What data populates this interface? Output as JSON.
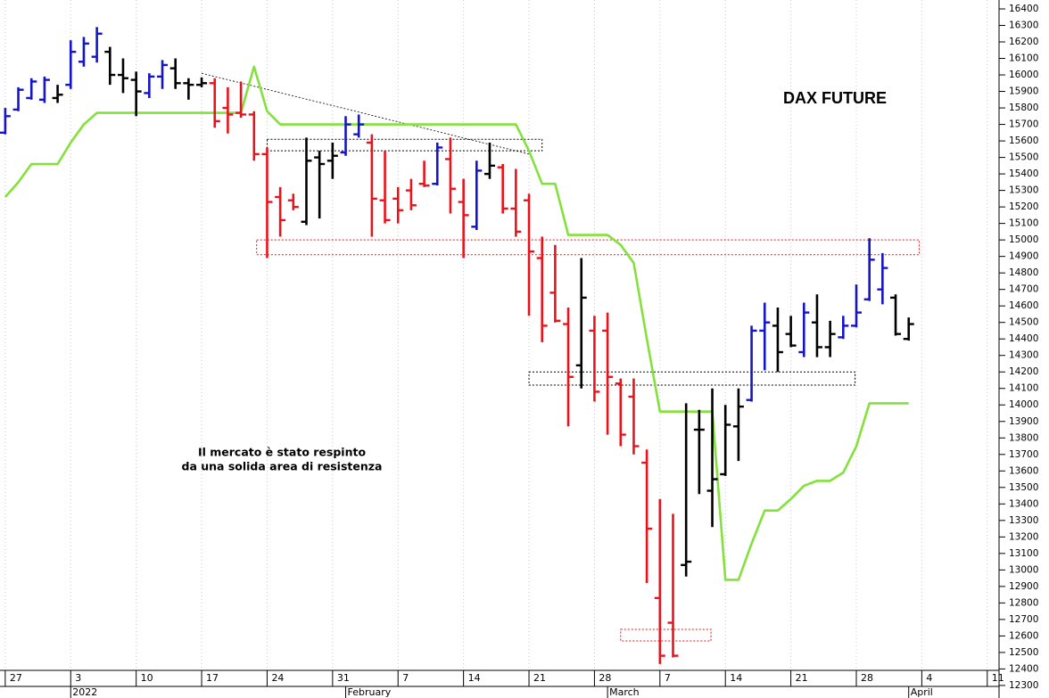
{
  "chart_data": {
    "type": "ohlc",
    "title": "DAX FUTURE",
    "annotation": [
      "Il mercato è stato respinto",
      "da una solida area di resistenza"
    ],
    "x": [
      0,
      1,
      2,
      3,
      4,
      5,
      6,
      7,
      8,
      9,
      10,
      11,
      12,
      13,
      14,
      15,
      16,
      17,
      18,
      19,
      20,
      21,
      22,
      23,
      24,
      25,
      26,
      27,
      28,
      29,
      30,
      31,
      32,
      33,
      34,
      35,
      36,
      37,
      38,
      39,
      40,
      41,
      42,
      43,
      44,
      45,
      46,
      47,
      48,
      49,
      50,
      51,
      52,
      53,
      54,
      55,
      56,
      57,
      58,
      59,
      60,
      61,
      62,
      63,
      64,
      65,
      66,
      67,
      68,
      69
    ],
    "open": [
      15650,
      15790,
      15860,
      15850,
      15860,
      15940,
      16080,
      16110,
      16140,
      16000,
      15970,
      15890,
      15990,
      16040,
      15950,
      15940,
      15950,
      15800,
      15770,
      15760,
      15520,
      15260,
      15240,
      15110,
      15500,
      15480,
      15530,
      15640,
      15590,
      15240,
      15250,
      15300,
      15340,
      15340,
      15490,
      15230,
      15080,
      15400,
      15440,
      15190,
      15240,
      14890,
      14680,
      14490,
      14240,
      14450,
      14450,
      14130,
      14050,
      13650,
      12830,
      12680,
      13030,
      13850,
      13480,
      13580,
      13870,
      14030,
      14450,
      14480,
      14430,
      14320,
      14500,
      14350,
      14410,
      14480,
      14640,
      14700,
      14650,
      14400
    ],
    "high": [
      15800,
      15925,
      15980,
      15990,
      15940,
      16210,
      16230,
      16290,
      16170,
      16100,
      16020,
      16010,
      16090,
      16100,
      15980,
      15985,
      15980,
      15925,
      15960,
      15780,
      15560,
      15320,
      15280,
      15620,
      15540,
      15590,
      15750,
      15760,
      15640,
      15540,
      15320,
      15370,
      15480,
      15590,
      15620,
      15370,
      15480,
      15590,
      15460,
      15430,
      15280,
      15020,
      14970,
      14590,
      14890,
      14540,
      14560,
      14160,
      14160,
      13730,
      13430,
      13340,
      14010,
      13970,
      14100,
      14000,
      14100,
      14480,
      14620,
      14590,
      14540,
      14620,
      14670,
      14510,
      14540,
      14730,
      15010,
      14920,
      14670,
      14530
    ],
    "low": [
      15640,
      15780,
      15850,
      15830,
      15830,
      15915,
      16050,
      16075,
      15940,
      15890,
      15750,
      15860,
      15915,
      15915,
      15850,
      15925,
      15680,
      15645,
      15740,
      15480,
      14890,
      15020,
      15180,
      15090,
      15130,
      15370,
      15510,
      15620,
      15020,
      15100,
      15100,
      15180,
      15320,
      15330,
      15160,
      14890,
      15060,
      15370,
      15160,
      15020,
      14540,
      14380,
      14500,
      13870,
      14100,
      14020,
      13820,
      13750,
      13700,
      12920,
      12430,
      12470,
      12960,
      13460,
      13260,
      13570,
      13660,
      14020,
      14210,
      14200,
      14350,
      14290,
      14290,
      14290,
      14400,
      14470,
      14630,
      14610,
      14420,
      14390
    ],
    "close": [
      15750,
      15910,
      15960,
      15970,
      15880,
      16140,
      16190,
      16250,
      16000,
      15980,
      15900,
      15990,
      16060,
      15950,
      15940,
      15950,
      15720,
      15760,
      15760,
      15520,
      15230,
      15120,
      15200,
      15480,
      15460,
      15510,
      15700,
      15700,
      15250,
      15120,
      15180,
      15210,
      15330,
      15560,
      15310,
      15150,
      15420,
      15450,
      15190,
      15050,
      14930,
      14480,
      14510,
      14170,
      14650,
      14080,
      14170,
      13820,
      13750,
      13250,
      12480,
      12480,
      13050,
      13850,
      13550,
      13880,
      13990,
      14450,
      14500,
      14320,
      14360,
      14560,
      14350,
      14430,
      14480,
      14560,
      14880,
      14830,
      14430,
      14490
    ],
    "bar_colors": [
      "#1414c8",
      "#1414c8",
      "#1414c8",
      "#1414c8",
      "#000000",
      "#1414c8",
      "#1414c8",
      "#1414c8",
      "#000000",
      "#000000",
      "#000000",
      "#1414c8",
      "#1414c8",
      "#000000",
      "#000000",
      "#000000",
      "#e8141c",
      "#e8141c",
      "#e8141c",
      "#e8141c",
      "#e8141c",
      "#e8141c",
      "#e8141c",
      "#000000",
      "#000000",
      "#000000",
      "#1414c8",
      "#1414c8",
      "#e8141c",
      "#e8141c",
      "#e8141c",
      "#e8141c",
      "#e8141c",
      "#1414c8",
      "#e8141c",
      "#e8141c",
      "#1414c8",
      "#000000",
      "#e8141c",
      "#e8141c",
      "#e8141c",
      "#e8141c",
      "#e8141c",
      "#e8141c",
      "#000000",
      "#e8141c",
      "#e8141c",
      "#e8141c",
      "#e8141c",
      "#e8141c",
      "#e8141c",
      "#e8141c",
      "#000000",
      "#000000",
      "#000000",
      "#000000",
      "#000000",
      "#1414c8",
      "#1414c8",
      "#000000",
      "#000000",
      "#1414c8",
      "#000000",
      "#000000",
      "#1414c8",
      "#1414c8",
      "#1414c8",
      "#1414c8",
      "#000000",
      "#000000"
    ],
    "line": {
      "color": "#84e13c",
      "values": [
        15260,
        15350,
        15460,
        15460,
        15460,
        15590,
        15700,
        15770,
        15770,
        15770,
        15770,
        15770,
        15770,
        15770,
        15770,
        15770,
        15770,
        15770,
        15770,
        16050,
        15780,
        15700,
        15700,
        15700,
        15700,
        15700,
        15700,
        15700,
        15700,
        15700,
        15700,
        15700,
        15700,
        15700,
        15700,
        15700,
        15700,
        15700,
        15700,
        15700,
        15540,
        15340,
        15340,
        15030,
        15030,
        15030,
        15030,
        14970,
        14860,
        14400,
        13960,
        13960,
        13960,
        13960,
        13960,
        12940,
        12940,
        13160,
        13360,
        13360,
        13430,
        13510,
        13540,
        13540,
        13590,
        13750,
        14010,
        14010,
        14010,
        14010
      ]
    },
    "trendline": {
      "x": [
        15,
        40
      ],
      "values": [
        16010,
        15520
      ]
    },
    "zones": [
      {
        "x": [
          20,
          41
        ],
        "y": [
          15540,
          15610
        ],
        "color": "#000000"
      },
      {
        "x": [
          19.2,
          69.8
        ],
        "y": [
          14910,
          15000
        ],
        "color": "#e8141c"
      },
      {
        "x": [
          40,
          64.9
        ],
        "y": [
          14120,
          14200
        ],
        "color": "#000000"
      },
      {
        "x": [
          47,
          53.9
        ],
        "y": [
          12570,
          12640
        ],
        "color": "#e8141c"
      }
    ],
    "xlim": [
      -0.4,
      75.9
    ],
    "ylim": [
      12278,
      16454
    ],
    "xticks": [
      {
        "value": 0,
        "label": "27"
      },
      {
        "value": 5,
        "label": "3"
      },
      {
        "value": 10,
        "label": "10"
      },
      {
        "value": 15,
        "label": "17"
      },
      {
        "value": 20,
        "label": "24"
      },
      {
        "value": 25,
        "label": "31"
      },
      {
        "value": 30,
        "label": "7"
      },
      {
        "value": 35,
        "label": "14"
      },
      {
        "value": 40,
        "label": "21"
      },
      {
        "value": 45,
        "label": "28"
      },
      {
        "value": 50,
        "label": "7"
      },
      {
        "value": 55,
        "label": "14"
      },
      {
        "value": 60,
        "label": "21"
      },
      {
        "value": 65,
        "label": "28"
      },
      {
        "value": 70,
        "label": "4"
      },
      {
        "value": 75,
        "label": "11"
      }
    ],
    "month_ticks": [
      {
        "value": 5,
        "label": "2022"
      },
      {
        "value": 26,
        "label": "February"
      },
      {
        "value": 46,
        "label": "March"
      },
      {
        "value": 69,
        "label": "April"
      }
    ],
    "yticks": [
      12300,
      12400,
      12500,
      12600,
      12700,
      12800,
      12900,
      13000,
      13100,
      13200,
      13300,
      13400,
      13500,
      13600,
      13700,
      13800,
      13900,
      14000,
      14100,
      14200,
      14300,
      14400,
      14500,
      14600,
      14700,
      14800,
      14900,
      15000,
      15100,
      15200,
      15300,
      15400,
      15500,
      15600,
      15700,
      15800,
      15900,
      16000,
      16100,
      16200,
      16300,
      16400
    ],
    "grid": true
  }
}
